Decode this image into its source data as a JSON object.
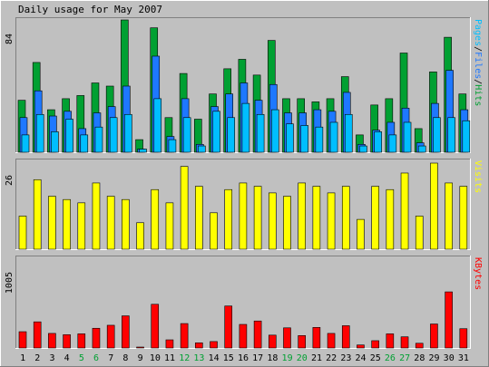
{
  "chart_data": [
    {
      "type": "bar",
      "title": "Daily usage for May 2007",
      "ylabel": "Pages/Files/Hits",
      "ylim": [
        0,
        84
      ],
      "ytick_label": "84",
      "categories": [
        "1",
        "2",
        "3",
        "4",
        "5",
        "6",
        "7",
        "8",
        "9",
        "10",
        "11",
        "12",
        "13",
        "14",
        "15",
        "16",
        "17",
        "18",
        "19",
        "20",
        "21",
        "22",
        "23",
        "24",
        "25",
        "26",
        "27",
        "28",
        "29",
        "30",
        "31"
      ],
      "weekend_days": [
        "5",
        "6",
        "12",
        "13",
        "19",
        "20",
        "26",
        "27"
      ],
      "series": [
        {
          "name": "Hits",
          "color": "#00a032",
          "values": [
            33,
            57,
            27,
            34,
            36,
            44,
            42,
            84,
            8,
            79,
            22,
            50,
            21,
            37,
            53,
            59,
            49,
            71,
            34,
            34,
            32,
            34,
            48,
            11,
            30,
            34,
            63,
            15,
            51,
            73,
            37
          ]
        },
        {
          "name": "Files",
          "color": "#1e78ff",
          "values": [
            22,
            39,
            23,
            26,
            15,
            25,
            29,
            42,
            2,
            61,
            10,
            34,
            5,
            29,
            37,
            44,
            33,
            43,
            25,
            25,
            27,
            26,
            38,
            5,
            14,
            19,
            28,
            6,
            31,
            52,
            27
          ]
        },
        {
          "name": "Pages",
          "color": "#00beff",
          "values": [
            11,
            24,
            13,
            21,
            11,
            16,
            22,
            24,
            2,
            34,
            8,
            22,
            4,
            26,
            22,
            31,
            24,
            27,
            18,
            17,
            16,
            19,
            24,
            4,
            13,
            11,
            19,
            4,
            22,
            22,
            20
          ]
        }
      ]
    },
    {
      "type": "bar",
      "ylabel": "Visits",
      "ylim": [
        0,
        26
      ],
      "ytick_label": "26",
      "series": [
        {
          "name": "Visits",
          "color": "#ffff00",
          "values": [
            10,
            21,
            16,
            15,
            14,
            20,
            16,
            15,
            8,
            18,
            14,
            25,
            19,
            11,
            18,
            20,
            19,
            17,
            16,
            20,
            19,
            17,
            19,
            9,
            19,
            18,
            23,
            10,
            26,
            20,
            19
          ]
        }
      ]
    },
    {
      "type": "bar",
      "ylabel": "KBytes",
      "ylim": [
        0,
        1005
      ],
      "ytick_label": "1005",
      "series": [
        {
          "name": "KBytes",
          "color": "#ff0000",
          "values": [
            190,
            305,
            170,
            155,
            165,
            230,
            265,
            375,
            10,
            510,
            95,
            285,
            60,
            75,
            490,
            275,
            315,
            150,
            235,
            145,
            240,
            170,
            260,
            35,
            85,
            165,
            130,
            55,
            280,
            655,
            225
          ]
        }
      ]
    }
  ],
  "colors": {
    "background": "#c0c0c0",
    "plot_background": "#c0c0c0",
    "weekday_label": "#000000",
    "weekend_label": "#00a032"
  }
}
